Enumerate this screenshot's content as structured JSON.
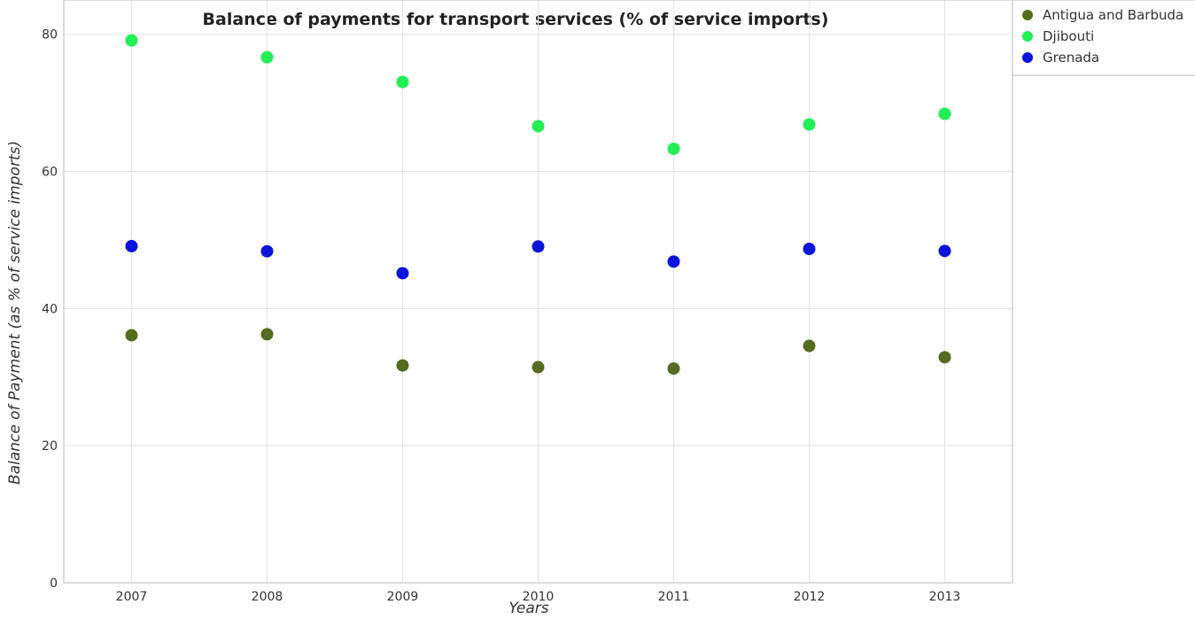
{
  "chart_data": {
    "type": "scatter",
    "title": "Balance of payments for transport services (% of service imports)",
    "xlabel": "Years",
    "ylabel": "Balance of Payment (as % of service imports)",
    "categories": [
      "2007",
      "2008",
      "2009",
      "2010",
      "2011",
      "2012",
      "2013"
    ],
    "ylim": [
      0,
      85
    ],
    "yticks": [
      0,
      20,
      40,
      60,
      80
    ],
    "grid": true,
    "legend_position": "top-right",
    "series": [
      {
        "name": "Antigua and Barbuda",
        "color": "#556b1f",
        "values": [
          36.1,
          36.25,
          31.7,
          31.45,
          31.25,
          34.55,
          32.9
        ]
      },
      {
        "name": "Djibouti",
        "color": "#22ee55",
        "values": [
          79.1,
          76.65,
          73.05,
          66.6,
          63.3,
          66.85,
          68.4
        ]
      },
      {
        "name": "Grenada",
        "color": "#0a14dc",
        "values": [
          49.1,
          48.35,
          45.15,
          49.05,
          46.85,
          48.7,
          48.4
        ]
      }
    ]
  }
}
